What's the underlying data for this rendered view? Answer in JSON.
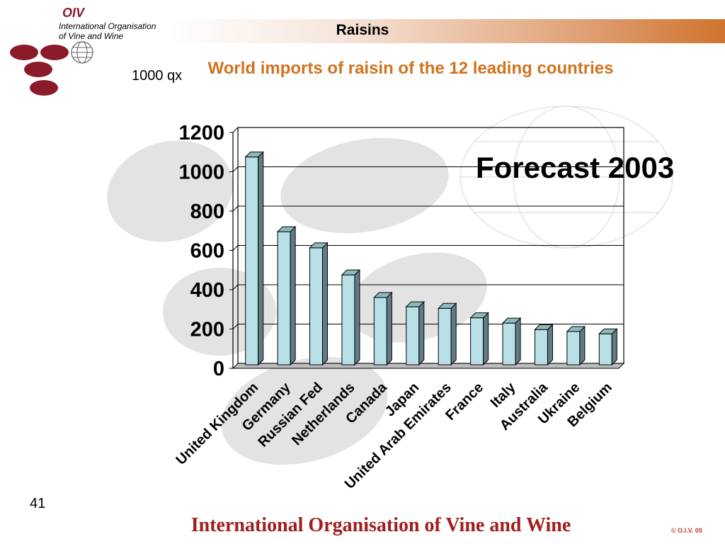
{
  "header": {
    "logo_text": "OIV",
    "org_line1": "International Organisation",
    "org_line2": "of  Vine  and  Wine",
    "slide_title": "Raisins"
  },
  "unit_label": "1000 qx",
  "annotation": "Forecast 2003",
  "footer": {
    "page_number": "41",
    "organisation": "International Organisation of Vine and Wine",
    "copyright": "© O.I.V. 05"
  },
  "colors": {
    "bar_fill": "#b8e0e6",
    "title": "#d0731f",
    "footer_text": "#a01e1e"
  },
  "chart_data": {
    "type": "bar",
    "title": "World imports of raisin of the 12 leading countries",
    "categories": [
      "United Kingdom",
      "Germany",
      "Russian Fed",
      "Netherlands",
      "Canada",
      "Japan",
      "United Arab Emirates",
      "France",
      "Italy",
      "Australia",
      "Ukraine",
      "Belgium"
    ],
    "values": [
      1050,
      670,
      588,
      450,
      335,
      288,
      280,
      232,
      205,
      172,
      162,
      150
    ],
    "ylim": [
      0,
      1200
    ],
    "yticks": [
      "0",
      "200",
      "400",
      "600",
      "800",
      "1000",
      "1200"
    ],
    "grid": true,
    "style": "3d"
  }
}
